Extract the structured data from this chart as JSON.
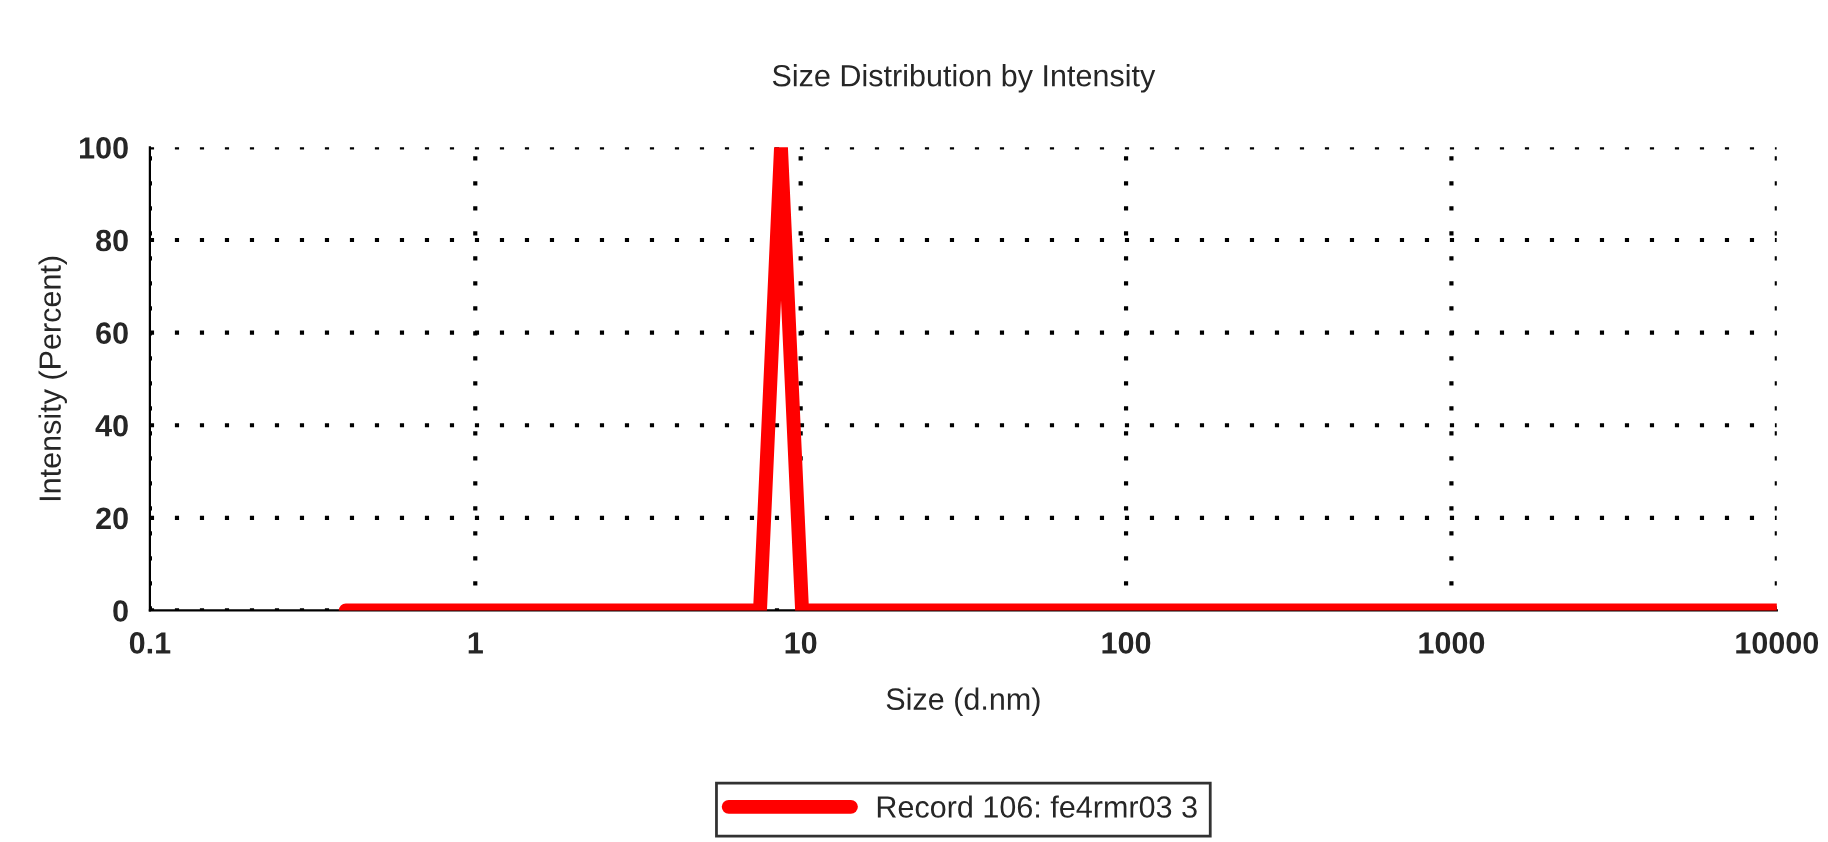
{
  "chart_data": {
    "type": "line",
    "title": "Size Distribution by Intensity",
    "xlabel": "Size (d.nm)",
    "ylabel": "Intensity (Percent)",
    "series": [
      {
        "name": "Record 106: fe4rmr03 3",
        "color": "#ff0000",
        "x": [
          0.4,
          7.5,
          8.7,
          10.1,
          10000
        ],
        "values": [
          0,
          0,
          100,
          0,
          0
        ]
      }
    ],
    "log": "x",
    "xlim": [
      0.1,
      10000
    ],
    "xticks": [
      0.1,
      1,
      10,
      100,
      1000,
      10000
    ],
    "ylim": [
      0,
      100
    ],
    "yticks": [
      0,
      20,
      40,
      60,
      80,
      100
    ],
    "grid": true,
    "legend": "bottom",
    "marker": "none",
    "line_style": "solid"
  }
}
